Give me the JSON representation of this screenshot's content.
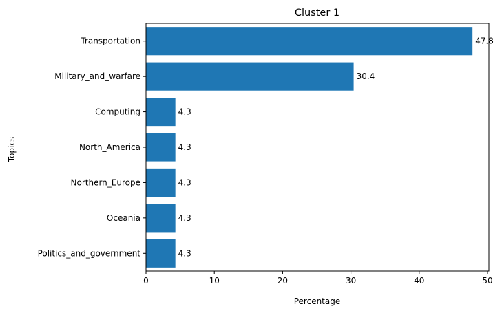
{
  "chart_data": {
    "type": "bar",
    "orientation": "horizontal",
    "title": "Cluster 1",
    "xlabel": "Percentage",
    "ylabel": "Topics",
    "categories": [
      "Transportation",
      "Military_and_warfare",
      "Computing",
      "North_America",
      "Northern_Europe",
      "Oceania",
      "Politics_and_government"
    ],
    "values": [
      47.8,
      30.4,
      4.3,
      4.3,
      4.3,
      4.3,
      4.3
    ],
    "value_labels": [
      "47.8",
      "30.4",
      "4.3",
      "4.3",
      "4.3",
      "4.3",
      "4.3"
    ],
    "xlim": [
      0,
      50.2
    ],
    "xticks": [
      0,
      10,
      20,
      30,
      40,
      50
    ],
    "xtick_labels": [
      "0",
      "10",
      "20",
      "30",
      "40",
      "50"
    ],
    "grid": false,
    "legend": "none",
    "colors": {
      "bar": "#1f77b4",
      "axis": "#000000"
    }
  }
}
